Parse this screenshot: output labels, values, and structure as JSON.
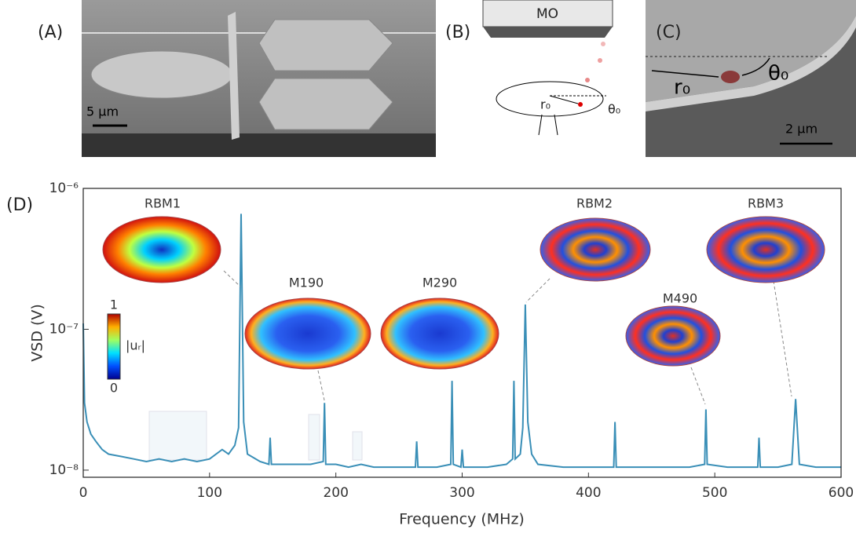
{
  "panels": {
    "a": {
      "label": "(A)",
      "scale": "5 µm"
    },
    "b": {
      "label": "(B)",
      "objective": "MO",
      "radius": "r₀",
      "angle": "θ₀"
    },
    "c": {
      "label": "(C)",
      "radius": "r₀",
      "angle": "θ₀",
      "scale": "2 µm"
    }
  },
  "chart_data": {
    "type": "line",
    "panel_label": "(D)",
    "xlabel": "Frequency (MHz)",
    "ylabel": "VSD (V)",
    "xlim": [
      0,
      600
    ],
    "xticks": [
      0,
      100,
      200,
      300,
      400,
      500,
      600
    ],
    "ylim": [
      8.9e-09,
      1e-06
    ],
    "log_y": true,
    "yticks": [
      {
        "value": 1e-08,
        "label": "10⁻⁸"
      },
      {
        "value": 1e-07,
        "label": "10⁻⁷"
      },
      {
        "value": 1e-06,
        "label": "10⁻⁶"
      }
    ],
    "color": "#3a8fb7",
    "annotations": [
      "RBM1",
      "M190",
      "M290",
      "RBM2",
      "M490",
      "RBM3"
    ],
    "colorbar": {
      "max": "1",
      "label": "|uᵣ|",
      "min": "0"
    },
    "x": [
      0,
      1,
      3,
      6,
      10,
      15,
      20,
      30,
      40,
      50,
      60,
      70,
      80,
      90,
      100,
      110,
      115,
      120,
      123,
      125,
      127,
      130,
      140,
      147,
      148,
      149,
      160,
      170,
      180,
      190,
      191,
      192,
      200,
      210,
      220,
      230,
      240,
      250,
      263,
      264,
      265,
      280,
      291,
      292,
      293,
      299,
      300,
      301,
      320,
      335,
      340,
      341,
      342,
      346,
      348,
      350,
      352,
      355,
      360,
      380,
      400,
      420,
      421,
      422,
      440,
      460,
      480,
      492,
      493,
      494,
      510,
      534,
      535,
      536,
      550,
      561,
      564,
      567,
      580,
      600
    ],
    "values": [
      1.1e-07,
      3e-08,
      2.2e-08,
      1.8e-08,
      1.6e-08,
      1.4e-08,
      1.3e-08,
      1.25e-08,
      1.2e-08,
      1.15e-08,
      1.2e-08,
      1.15e-08,
      1.2e-08,
      1.15e-08,
      1.2e-08,
      1.4e-08,
      1.3e-08,
      1.5e-08,
      2e-08,
      6.6e-07,
      2.2e-08,
      1.3e-08,
      1.15e-08,
      1.1e-08,
      1.7e-08,
      1.1e-08,
      1.1e-08,
      1.1e-08,
      1.1e-08,
      1.15e-08,
      3e-08,
      1.1e-08,
      1.1e-08,
      1.05e-08,
      1.1e-08,
      1.05e-08,
      1.05e-08,
      1.05e-08,
      1.05e-08,
      1.6e-08,
      1.05e-08,
      1.05e-08,
      1.1e-08,
      4.3e-08,
      1.1e-08,
      1.05e-08,
      1.4e-08,
      1.05e-08,
      1.05e-08,
      1.1e-08,
      1.2e-08,
      4.3e-08,
      1.2e-08,
      1.3e-08,
      2e-08,
      1.5e-07,
      2.2e-08,
      1.3e-08,
      1.1e-08,
      1.05e-08,
      1.05e-08,
      1.05e-08,
      2.2e-08,
      1.05e-08,
      1.05e-08,
      1.05e-08,
      1.05e-08,
      1.1e-08,
      2.7e-08,
      1.1e-08,
      1.05e-08,
      1.05e-08,
      1.7e-08,
      1.05e-08,
      1.05e-08,
      1.1e-08,
      3.2e-08,
      1.1e-08,
      1.05e-08,
      1.05e-08
    ]
  }
}
